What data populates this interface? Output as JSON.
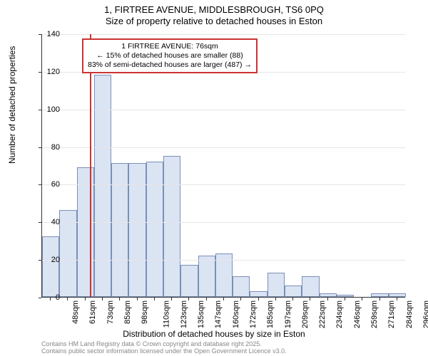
{
  "title": {
    "line1": "1, FIRTREE AVENUE, MIDDLESBROUGH, TS6 0PQ",
    "line2": "Size of property relative to detached houses in Eston"
  },
  "y_axis": {
    "label": "Number of detached properties",
    "min": 0,
    "max": 140,
    "ticks": [
      0,
      20,
      40,
      60,
      80,
      100,
      120,
      140
    ]
  },
  "x_axis": {
    "label": "Distribution of detached houses by size in Eston",
    "categories": [
      "48sqm",
      "61sqm",
      "73sqm",
      "85sqm",
      "98sqm",
      "110sqm",
      "123sqm",
      "135sqm",
      "147sqm",
      "160sqm",
      "172sqm",
      "185sqm",
      "197sqm",
      "209sqm",
      "222sqm",
      "234sqm",
      "246sqm",
      "259sqm",
      "271sqm",
      "284sqm",
      "296sqm"
    ]
  },
  "histogram": {
    "type": "histogram",
    "values": [
      32,
      46,
      69,
      118,
      71,
      71,
      72,
      75,
      17,
      22,
      23,
      11,
      3,
      13,
      6,
      11,
      2,
      1,
      0,
      2,
      2
    ],
    "bar_fill": "#dbe4f3",
    "bar_border": "#7a8fb8"
  },
  "reference": {
    "color": "#cc3333",
    "value_sqm": 76,
    "annotation": {
      "line1": "1 FIRTREE AVENUE: 76sqm",
      "line2": "← 15% of detached houses are smaller (88)",
      "line3": "83% of semi-detached houses are larger (487) →"
    }
  },
  "footer": {
    "line1": "Contains HM Land Registry data © Crown copyright and database right 2025.",
    "line2": "Contains public sector information licensed under the Open Government Licence v3.0."
  },
  "style": {
    "background": "#ffffff",
    "grid_color": "#e6e6e6",
    "axis_color": "#333333",
    "text_color": "#000000",
    "footer_color": "#888888",
    "title_fontsize": 13,
    "axis_label_fontsize": 12,
    "tick_fontsize": 11,
    "annotation_fontsize": 10.5,
    "footer_fontsize": 9
  }
}
